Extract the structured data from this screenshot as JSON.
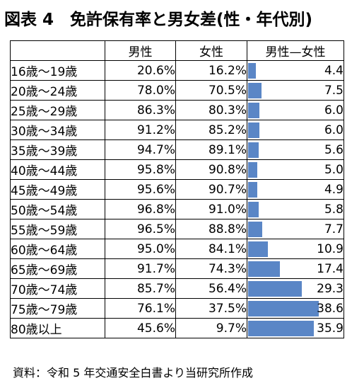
{
  "title": "図表 4　免許保有率と男女差(性・年代別)",
  "table": {
    "headers": [
      "",
      "男性",
      "女性",
      "男性—女性"
    ],
    "rows": [
      {
        "age": "16歳～19歳",
        "male": "20.6%",
        "female": "16.2%",
        "diff": "4.4",
        "diff_value": 4.4
      },
      {
        "age": "20歳～24歳",
        "male": "78.0%",
        "female": "70.5%",
        "diff": "7.5",
        "diff_value": 7.5
      },
      {
        "age": "25歳～29歳",
        "male": "86.3%",
        "female": "80.3%",
        "diff": "6.0",
        "diff_value": 6.0
      },
      {
        "age": "30歳～34歳",
        "male": "91.2%",
        "female": "85.2%",
        "diff": "6.0",
        "diff_value": 6.0
      },
      {
        "age": "35歳～39歳",
        "male": "94.7%",
        "female": "89.1%",
        "diff": "5.6",
        "diff_value": 5.6
      },
      {
        "age": "40歳～44歳",
        "male": "95.8%",
        "female": "90.8%",
        "diff": "5.0",
        "diff_value": 5.0
      },
      {
        "age": "45歳～49歳",
        "male": "95.6%",
        "female": "90.7%",
        "diff": "4.9",
        "diff_value": 4.9
      },
      {
        "age": "50歳～54歳",
        "male": "96.8%",
        "female": "91.0%",
        "diff": "5.8",
        "diff_value": 5.8
      },
      {
        "age": "55歳～59歳",
        "male": "96.5%",
        "female": "88.8%",
        "diff": "7.7",
        "diff_value": 7.7
      },
      {
        "age": "60歳～64歳",
        "male": "95.0%",
        "female": "84.1%",
        "diff": "10.9",
        "diff_value": 10.9
      },
      {
        "age": "65歳～69歳",
        "male": "91.7%",
        "female": "74.3%",
        "diff": "17.4",
        "diff_value": 17.4
      },
      {
        "age": "70歳～74歳",
        "male": "85.7%",
        "female": "56.4%",
        "diff": "29.3",
        "diff_value": 29.3
      },
      {
        "age": "75歳～79歳",
        "male": "76.1%",
        "female": "37.5%",
        "diff": "38.6",
        "diff_value": 38.6
      },
      {
        "age": "80歳以上",
        "male": "45.6%",
        "female": "9.7%",
        "diff": "35.9",
        "diff_value": 35.9
      }
    ],
    "bar_scale_max": 38.6,
    "bar_color": "#5a86c6"
  },
  "source": "資料：令和 5 年交通安全白書より当研究所作成"
}
